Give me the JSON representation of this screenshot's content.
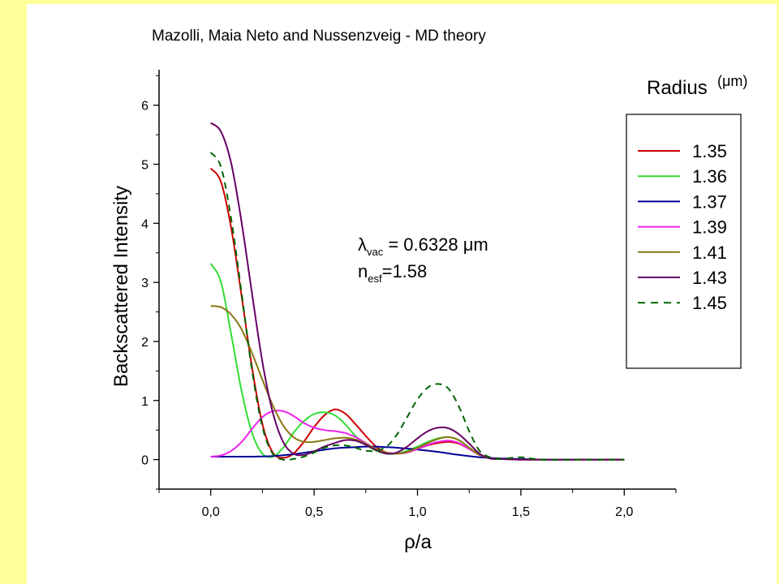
{
  "title": "Mazolli, Maia Neto and Nussenzveig - MD theory",
  "chart_data": {
    "type": "line",
    "xlabel": "ρ/a",
    "ylabel": "Backscattered Intensity",
    "xlim": [
      -0.25,
      2.25
    ],
    "ylim": [
      -0.5,
      6.6
    ],
    "x_ticks": [
      "0,0",
      "0,5",
      "1,0",
      "1,5",
      "2,0"
    ],
    "y_ticks": [
      "0",
      "1",
      "2",
      "3",
      "4",
      "5",
      "6"
    ],
    "legend": {
      "title": "Radius",
      "unit": "(μm)",
      "position": "right"
    },
    "annotation": {
      "lambda_symbol": "λ",
      "lambda_sub": "vac",
      "lambda_value": " = 0.6328 μm",
      "n_symbol": "n",
      "n_sub": "esf",
      "n_value": "=1.58"
    },
    "series": [
      {
        "name": "1.35",
        "color": "#cc0000",
        "dash": false,
        "x": [
          0.0,
          0.05,
          0.1,
          0.15,
          0.2,
          0.25,
          0.3,
          0.35,
          0.4,
          0.45,
          0.5,
          0.55,
          0.6,
          0.65,
          0.7,
          0.75,
          0.8,
          0.85,
          0.9,
          0.95,
          1.0,
          1.05,
          1.1,
          1.15,
          1.2,
          1.25,
          1.3,
          1.35,
          1.4,
          1.5,
          1.6,
          1.8,
          2.0
        ],
        "y": [
          4.93,
          4.7,
          3.9,
          2.75,
          1.55,
          0.6,
          0.12,
          0.03,
          0.1,
          0.3,
          0.55,
          0.75,
          0.85,
          0.78,
          0.6,
          0.4,
          0.22,
          0.12,
          0.1,
          0.12,
          0.18,
          0.24,
          0.28,
          0.3,
          0.27,
          0.18,
          0.08,
          0.02,
          0.01,
          0.0,
          0.0,
          0.0,
          0.0
        ]
      },
      {
        "name": "1.36",
        "color": "#33dd33",
        "dash": false,
        "x": [
          0.0,
          0.05,
          0.1,
          0.15,
          0.2,
          0.25,
          0.3,
          0.35,
          0.4,
          0.45,
          0.5,
          0.55,
          0.6,
          0.65,
          0.7,
          0.75,
          0.8,
          0.85,
          0.9,
          0.95,
          1.0,
          1.05,
          1.1,
          1.15,
          1.2,
          1.25,
          1.3,
          1.35,
          1.4,
          1.5,
          1.6,
          1.8,
          2.0
        ],
        "y": [
          3.32,
          3.0,
          2.1,
          1.15,
          0.45,
          0.1,
          0.05,
          0.2,
          0.45,
          0.65,
          0.77,
          0.8,
          0.75,
          0.6,
          0.4,
          0.25,
          0.15,
          0.1,
          0.1,
          0.15,
          0.22,
          0.3,
          0.36,
          0.38,
          0.33,
          0.2,
          0.08,
          0.02,
          0.01,
          0.0,
          0.0,
          0.0,
          0.0
        ]
      },
      {
        "name": "1.37",
        "color": "#000099",
        "dash": false,
        "x": [
          0.0,
          0.1,
          0.2,
          0.3,
          0.4,
          0.5,
          0.6,
          0.7,
          0.75,
          0.8,
          0.85,
          0.9,
          1.0,
          1.1,
          1.2,
          1.3,
          1.4,
          1.5,
          1.6,
          1.8,
          2.0
        ],
        "y": [
          0.05,
          0.05,
          0.05,
          0.06,
          0.09,
          0.14,
          0.19,
          0.21,
          0.22,
          0.22,
          0.21,
          0.2,
          0.17,
          0.13,
          0.08,
          0.04,
          0.02,
          0.01,
          0.0,
          0.0,
          0.0
        ]
      },
      {
        "name": "1.39",
        "color": "#ee22ee",
        "dash": false,
        "x": [
          0.0,
          0.05,
          0.1,
          0.15,
          0.2,
          0.25,
          0.3,
          0.35,
          0.4,
          0.45,
          0.5,
          0.55,
          0.6,
          0.65,
          0.7,
          0.75,
          0.8,
          0.85,
          0.9,
          0.95,
          1.0,
          1.05,
          1.1,
          1.15,
          1.2,
          1.25,
          1.3,
          1.35,
          1.4,
          1.5,
          1.6,
          1.8,
          2.0
        ],
        "y": [
          0.05,
          0.07,
          0.15,
          0.3,
          0.52,
          0.72,
          0.82,
          0.82,
          0.74,
          0.62,
          0.54,
          0.5,
          0.48,
          0.45,
          0.38,
          0.28,
          0.18,
          0.12,
          0.1,
          0.12,
          0.18,
          0.25,
          0.3,
          0.32,
          0.28,
          0.18,
          0.08,
          0.02,
          0.01,
          0.0,
          0.0,
          0.0,
          0.0
        ]
      },
      {
        "name": "1.41",
        "color": "#887711",
        "dash": false,
        "x": [
          0.0,
          0.05,
          0.1,
          0.15,
          0.2,
          0.25,
          0.3,
          0.35,
          0.4,
          0.45,
          0.5,
          0.55,
          0.6,
          0.65,
          0.7,
          0.75,
          0.8,
          0.85,
          0.9,
          0.95,
          1.0,
          1.05,
          1.1,
          1.15,
          1.2,
          1.25,
          1.3,
          1.35,
          1.4,
          1.5,
          1.6,
          1.8,
          2.0
        ],
        "y": [
          2.6,
          2.58,
          2.45,
          2.2,
          1.8,
          1.35,
          0.92,
          0.58,
          0.38,
          0.3,
          0.3,
          0.33,
          0.36,
          0.37,
          0.34,
          0.27,
          0.18,
          0.12,
          0.1,
          0.13,
          0.2,
          0.28,
          0.35,
          0.38,
          0.33,
          0.2,
          0.08,
          0.02,
          0.01,
          0.0,
          0.0,
          0.0,
          0.0
        ]
      },
      {
        "name": "1.43",
        "color": "#660066",
        "dash": false,
        "x": [
          0.0,
          0.05,
          0.1,
          0.15,
          0.2,
          0.25,
          0.3,
          0.35,
          0.4,
          0.45,
          0.5,
          0.55,
          0.6,
          0.65,
          0.7,
          0.75,
          0.8,
          0.85,
          0.9,
          0.95,
          1.0,
          1.05,
          1.1,
          1.15,
          1.2,
          1.25,
          1.3,
          1.35,
          1.4,
          1.5,
          1.6,
          1.8,
          2.0
        ],
        "y": [
          5.7,
          5.55,
          5.0,
          4.0,
          2.8,
          1.65,
          0.8,
          0.3,
          0.1,
          0.08,
          0.14,
          0.22,
          0.28,
          0.33,
          0.32,
          0.25,
          0.16,
          0.1,
          0.12,
          0.22,
          0.36,
          0.48,
          0.54,
          0.53,
          0.43,
          0.27,
          0.1,
          0.02,
          0.01,
          0.0,
          0.0,
          0.0,
          0.0
        ]
      },
      {
        "name": "1.45",
        "color": "#006600",
        "dash": true,
        "x": [
          0.0,
          0.05,
          0.1,
          0.15,
          0.2,
          0.25,
          0.3,
          0.35,
          0.4,
          0.45,
          0.5,
          0.55,
          0.6,
          0.65,
          0.7,
          0.75,
          0.8,
          0.85,
          0.9,
          0.95,
          1.0,
          1.05,
          1.1,
          1.15,
          1.2,
          1.25,
          1.3,
          1.35,
          1.4,
          1.5,
          1.6,
          1.8,
          2.0
        ],
        "y": [
          5.2,
          4.95,
          4.05,
          2.8,
          1.5,
          0.55,
          0.1,
          0.0,
          0.01,
          0.05,
          0.12,
          0.2,
          0.24,
          0.24,
          0.2,
          0.15,
          0.15,
          0.22,
          0.42,
          0.72,
          1.02,
          1.22,
          1.28,
          1.2,
          0.9,
          0.48,
          0.15,
          0.04,
          0.01,
          0.04,
          0.0,
          0.0,
          0.0
        ]
      }
    ]
  }
}
